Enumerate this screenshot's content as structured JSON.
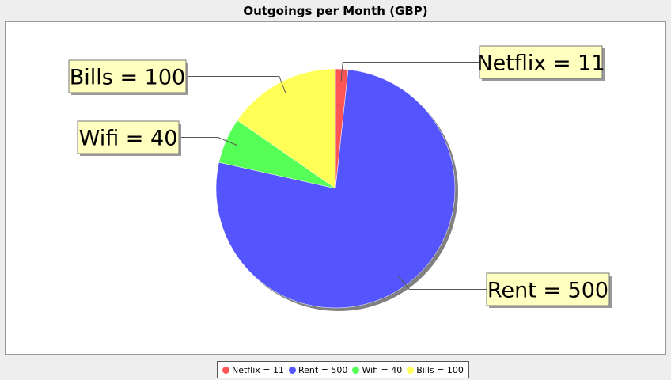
{
  "chart_data": {
    "type": "pie",
    "title": "Outgoings per Month (GBP)",
    "slices": [
      {
        "label": "Netflix",
        "value": 11,
        "color": "#ff5555",
        "display": "Netflix = 11"
      },
      {
        "label": "Rent",
        "value": 500,
        "color": "#5555ff",
        "display": "Rent = 500"
      },
      {
        "label": "Wifi",
        "value": 40,
        "color": "#55ff55",
        "display": "Wifi = 40"
      },
      {
        "label": "Bills",
        "value": 100,
        "color": "#ffff55",
        "display": "Bills = 100"
      }
    ],
    "legend_position": "bottom",
    "label_background": "#ffffc0"
  }
}
